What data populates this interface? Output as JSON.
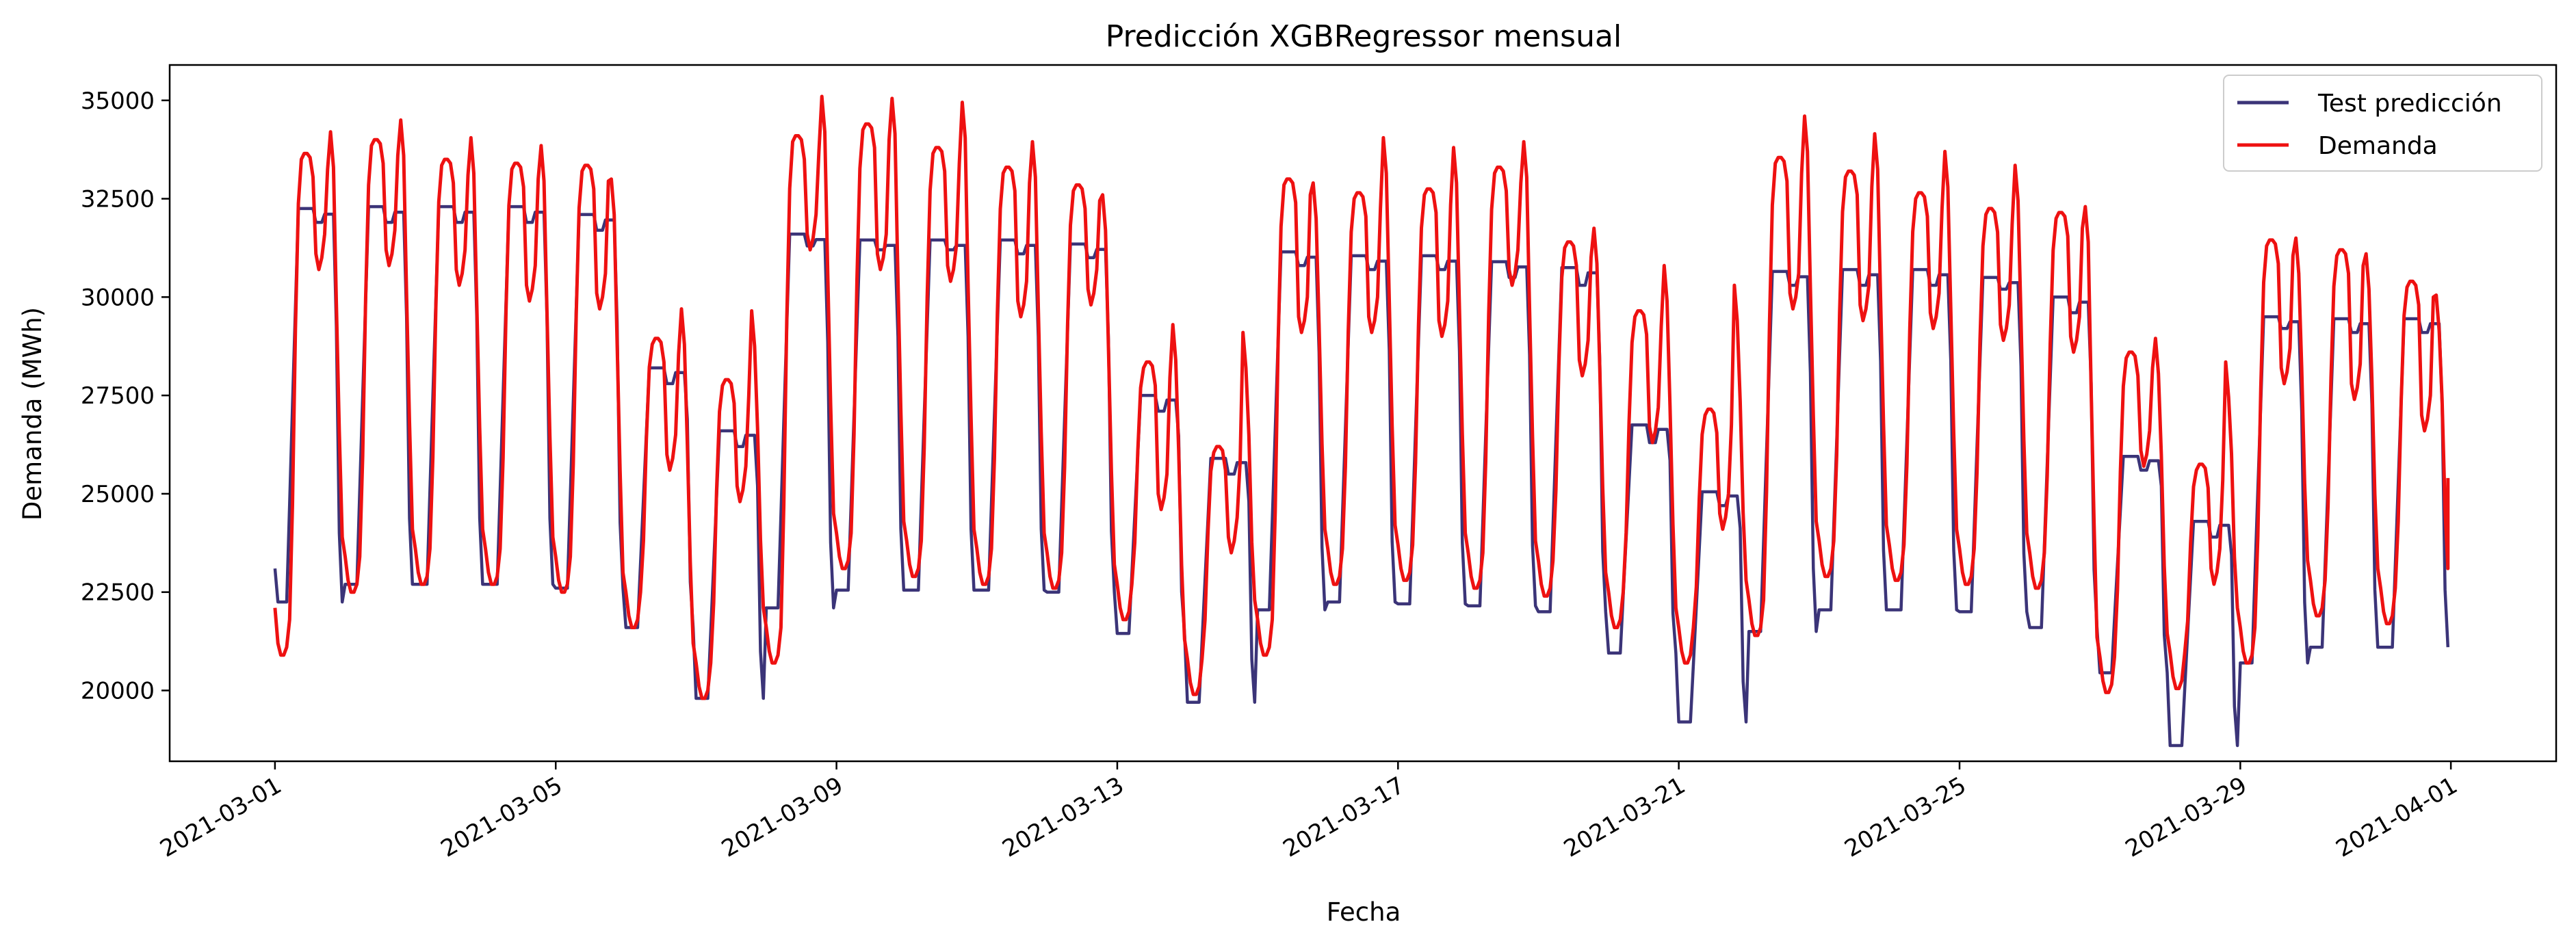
{
  "chart_data": {
    "type": "line",
    "title": "Predicción XGBRegressor mensual",
    "xlabel": "Fecha",
    "ylabel": "Demanda (MWh)",
    "xlim": [
      "2021-02-27T12:00",
      "2021-04-02T12:00"
    ],
    "ylim": [
      18200,
      35900
    ],
    "yticks": [
      20000,
      22500,
      25000,
      27500,
      30000,
      32500,
      35000
    ],
    "xticks": [
      "2021-03-01",
      "2021-03-05",
      "2021-03-09",
      "2021-03-13",
      "2021-03-17",
      "2021-03-21",
      "2021-03-25",
      "2021-03-29",
      "2021-04-01"
    ],
    "grid": false,
    "legend_position": "top-right",
    "sampling": "hourly",
    "start": "2021-03-01T00:00",
    "series": [
      {
        "name": "Test predicción",
        "color": "#3b3478",
        "daily": [
          {
            "date": "2021-03-01",
            "min": 22250,
            "max": 32250,
            "mid": 31900
          },
          {
            "date": "2021-03-02",
            "min": 22700,
            "max": 32300,
            "mid": 31900
          },
          {
            "date": "2021-03-03",
            "min": 22700,
            "max": 32300,
            "mid": 31900
          },
          {
            "date": "2021-03-04",
            "min": 22700,
            "max": 32300,
            "mid": 31900
          },
          {
            "date": "2021-03-05",
            "min": 22600,
            "max": 32100,
            "mid": 31700
          },
          {
            "date": "2021-03-06",
            "min": 21600,
            "max": 28200,
            "mid": 27800
          },
          {
            "date": "2021-03-07",
            "min": 19800,
            "max": 26600,
            "mid": 26200
          },
          {
            "date": "2021-03-08",
            "min": 22100,
            "max": 31600,
            "mid": 31300
          },
          {
            "date": "2021-03-09",
            "min": 22550,
            "max": 31450,
            "mid": 31200
          },
          {
            "date": "2021-03-10",
            "min": 22550,
            "max": 31450,
            "mid": 31200
          },
          {
            "date": "2021-03-11",
            "min": 22550,
            "max": 31450,
            "mid": 31100
          },
          {
            "date": "2021-03-12",
            "min": 22500,
            "max": 31350,
            "mid": 31000
          },
          {
            "date": "2021-03-13",
            "min": 21450,
            "max": 27500,
            "mid": 27100
          },
          {
            "date": "2021-03-14",
            "min": 19700,
            "max": 25900,
            "mid": 25500
          },
          {
            "date": "2021-03-15",
            "min": 22050,
            "max": 31150,
            "mid": 30800
          },
          {
            "date": "2021-03-16",
            "min": 22250,
            "max": 31050,
            "mid": 30700
          },
          {
            "date": "2021-03-17",
            "min": 22200,
            "max": 31050,
            "mid": 30700
          },
          {
            "date": "2021-03-18",
            "min": 22150,
            "max": 30900,
            "mid": 30500
          },
          {
            "date": "2021-03-19",
            "min": 22000,
            "max": 30750,
            "mid": 30300
          },
          {
            "date": "2021-03-20",
            "min": 20950,
            "max": 26750,
            "mid": 26300
          },
          {
            "date": "2021-03-21",
            "min": 19200,
            "max": 25050,
            "mid": 24700
          },
          {
            "date": "2021-03-22",
            "min": 21500,
            "max": 30650,
            "mid": 30300
          },
          {
            "date": "2021-03-23",
            "min": 22050,
            "max": 30700,
            "mid": 30300
          },
          {
            "date": "2021-03-24",
            "min": 22050,
            "max": 30700,
            "mid": 30300
          },
          {
            "date": "2021-03-25",
            "min": 22000,
            "max": 30500,
            "mid": 30200
          },
          {
            "date": "2021-03-26",
            "min": 21600,
            "max": 30000,
            "mid": 29600
          },
          {
            "date": "2021-03-27",
            "min": 20450,
            "max": 25950,
            "mid": 25600
          },
          {
            "date": "2021-03-28",
            "min": 18600,
            "max": 24300,
            "mid": 23900
          },
          {
            "date": "2021-03-29",
            "min": 20700,
            "max": 29500,
            "mid": 29200
          },
          {
            "date": "2021-03-30",
            "min": 21100,
            "max": 29450,
            "mid": 29100
          },
          {
            "date": "2021-03-31",
            "min": 21100,
            "max": 29450,
            "mid": 29100
          }
        ]
      },
      {
        "name": "Demanda",
        "color": "#ee1111",
        "daily": [
          {
            "date": "2021-03-01",
            "min": 20900,
            "max": 33650,
            "mid": 30700,
            "peak": 34200
          },
          {
            "date": "2021-03-02",
            "min": 22500,
            "max": 34000,
            "mid": 30800,
            "peak": 34500
          },
          {
            "date": "2021-03-03",
            "min": 22700,
            "max": 33500,
            "mid": 30300,
            "peak": 34050
          },
          {
            "date": "2021-03-04",
            "min": 22700,
            "max": 33400,
            "mid": 29900,
            "peak": 33850
          },
          {
            "date": "2021-03-05",
            "min": 22500,
            "max": 33350,
            "mid": 29700,
            "peak": 33000
          },
          {
            "date": "2021-03-06",
            "min": 21600,
            "max": 28950,
            "mid": 25600,
            "peak": 29700
          },
          {
            "date": "2021-03-07",
            "min": 19800,
            "max": 27900,
            "mid": 24800,
            "peak": 29650
          },
          {
            "date": "2021-03-08",
            "min": 20700,
            "max": 34100,
            "mid": 31200,
            "peak": 35100
          },
          {
            "date": "2021-03-09",
            "min": 23100,
            "max": 34400,
            "mid": 30700,
            "peak": 35050
          },
          {
            "date": "2021-03-10",
            "min": 22900,
            "max": 33800,
            "mid": 30400,
            "peak": 34950
          },
          {
            "date": "2021-03-11",
            "min": 22700,
            "max": 33300,
            "mid": 29500,
            "peak": 33950
          },
          {
            "date": "2021-03-12",
            "min": 22600,
            "max": 32850,
            "mid": 29800,
            "peak": 32600
          },
          {
            "date": "2021-03-13",
            "min": 21800,
            "max": 28350,
            "mid": 24600,
            "peak": 29300
          },
          {
            "date": "2021-03-14",
            "min": 19900,
            "max": 26200,
            "mid": 23500,
            "peak": 29100
          },
          {
            "date": "2021-03-15",
            "min": 20900,
            "max": 33000,
            "mid": 29100,
            "peak": 32900
          },
          {
            "date": "2021-03-16",
            "min": 22700,
            "max": 32650,
            "mid": 29100,
            "peak": 34050
          },
          {
            "date": "2021-03-17",
            "min": 22800,
            "max": 32750,
            "mid": 29000,
            "peak": 33800
          },
          {
            "date": "2021-03-18",
            "min": 22600,
            "max": 33300,
            "mid": 30300,
            "peak": 33950
          },
          {
            "date": "2021-03-19",
            "min": 22400,
            "max": 31400,
            "mid": 28000,
            "peak": 31750
          },
          {
            "date": "2021-03-20",
            "min": 21600,
            "max": 29650,
            "mid": 26300,
            "peak": 30800
          },
          {
            "date": "2021-03-21",
            "min": 20700,
            "max": 27150,
            "mid": 24100,
            "peak": 30300
          },
          {
            "date": "2021-03-22",
            "min": 21400,
            "max": 33550,
            "mid": 29700,
            "peak": 34600
          },
          {
            "date": "2021-03-23",
            "min": 22900,
            "max": 33200,
            "mid": 29400,
            "peak": 34150
          },
          {
            "date": "2021-03-24",
            "min": 22800,
            "max": 32650,
            "mid": 29200,
            "peak": 33700
          },
          {
            "date": "2021-03-25",
            "min": 22700,
            "max": 32250,
            "mid": 28900,
            "peak": 33350
          },
          {
            "date": "2021-03-26",
            "min": 22600,
            "max": 32150,
            "mid": 28600,
            "peak": 32300
          },
          {
            "date": "2021-03-27",
            "min": 19950,
            "max": 28600,
            "mid": 25700,
            "peak": 28950
          },
          {
            "date": "2021-03-28",
            "min": 20050,
            "max": 25750,
            "mid": 22700,
            "peak": 28350
          },
          {
            "date": "2021-03-29",
            "min": 20700,
            "max": 31450,
            "mid": 27800,
            "peak": 31500
          },
          {
            "date": "2021-03-30",
            "min": 21900,
            "max": 31200,
            "mid": 27400,
            "peak": 31100
          },
          {
            "date": "2021-03-31",
            "min": 21700,
            "max": 30400,
            "mid": 26600,
            "peak": 30050
          }
        ],
        "end_value": 25400
      }
    ]
  }
}
